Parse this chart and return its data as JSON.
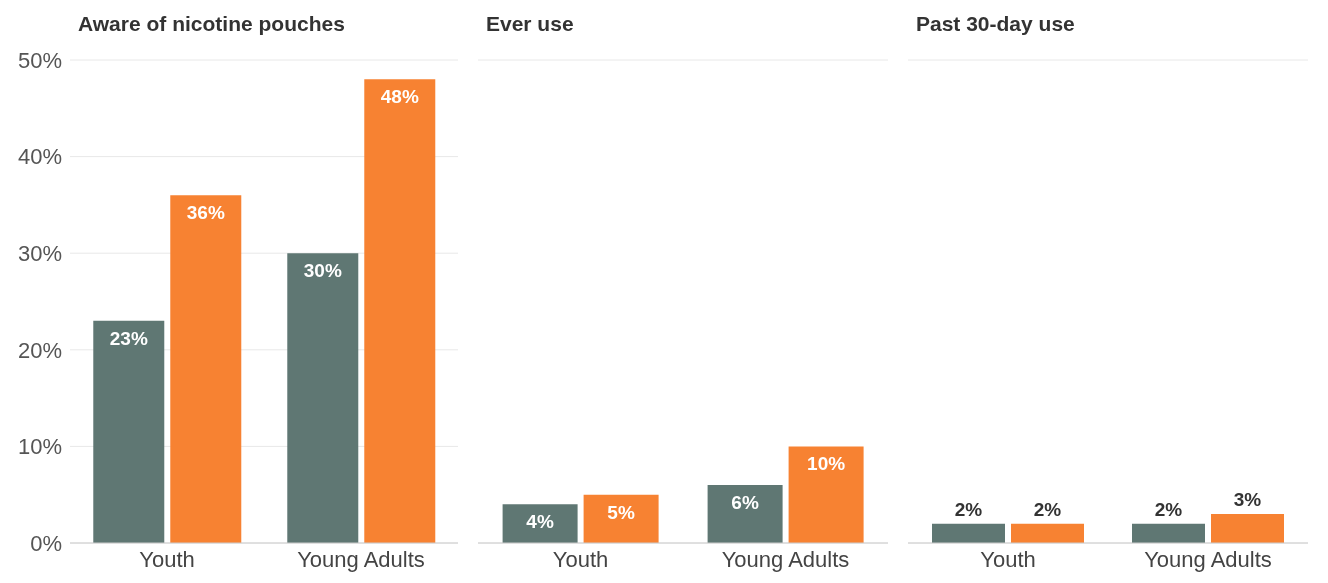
{
  "chart_data": [
    {
      "type": "bar",
      "title": "Aware of nicotine pouches",
      "categories": [
        "Youth",
        "Young Adults"
      ],
      "series": [
        {
          "color": "#5f7773",
          "values": [
            23,
            30
          ],
          "value_labels": [
            "23%",
            "30%"
          ]
        },
        {
          "color": "#f78232",
          "values": [
            36,
            48
          ],
          "value_labels": [
            "36%",
            "48%"
          ]
        }
      ],
      "ylim": [
        0,
        50
      ],
      "yticks": [
        {
          "value": 0,
          "label": "0%"
        },
        {
          "value": 10,
          "label": "10%"
        },
        {
          "value": 20,
          "label": "20%"
        },
        {
          "value": 30,
          "label": "30%"
        },
        {
          "value": 40,
          "label": "40%"
        },
        {
          "value": 50,
          "label": "50%"
        }
      ],
      "grid": "y",
      "legend": false
    },
    {
      "type": "bar",
      "title": "Ever use",
      "categories": [
        "Youth",
        "Young Adults"
      ],
      "series": [
        {
          "color": "#5f7773",
          "values": [
            4,
            6
          ],
          "value_labels": [
            "4%",
            "6%"
          ]
        },
        {
          "color": "#f78232",
          "values": [
            5,
            10
          ],
          "value_labels": [
            "5%",
            "10%"
          ]
        }
      ],
      "ylim": [
        0,
        50
      ],
      "yticks": [
        {
          "value": 0,
          "label": null
        },
        {
          "value": 10,
          "label": null
        },
        {
          "value": 20,
          "label": null
        },
        {
          "value": 30,
          "label": null
        },
        {
          "value": 40,
          "label": null
        },
        {
          "value": 50,
          "label": null
        }
      ],
      "grid": "y",
      "legend": false,
      "tick_labels": "x"
    },
    {
      "type": "bar",
      "title": "Past 30-day use",
      "categories": [
        "Youth",
        "Young Adults"
      ],
      "series": [
        {
          "color": "#5f7773",
          "values": [
            2,
            2
          ],
          "value_labels": [
            "2%",
            "2%"
          ]
        },
        {
          "color": "#f78232",
          "values": [
            2,
            3
          ],
          "value_labels": [
            "2%",
            "3%"
          ]
        }
      ],
      "ylim": [
        0,
        50
      ],
      "yticks": [
        {
          "value": 0,
          "label": null
        },
        {
          "value": 10,
          "label": null
        },
        {
          "value": 20,
          "label": null
        },
        {
          "value": 30,
          "label": null
        },
        {
          "value": 40,
          "label": null
        },
        {
          "value": 50,
          "label": null
        }
      ],
      "grid": "y",
      "legend": false,
      "tick_labels": "x"
    }
  ]
}
